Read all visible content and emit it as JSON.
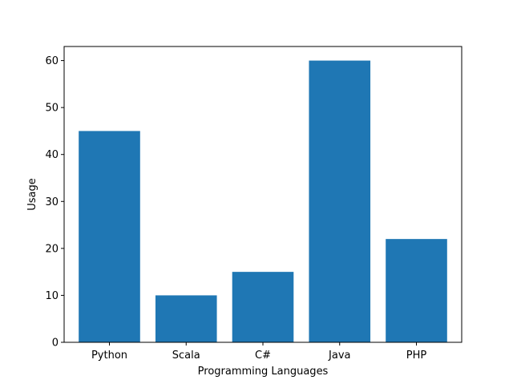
{
  "chart_data": {
    "type": "bar",
    "title": "",
    "xlabel": "Programming Languages",
    "ylabel": "Usage",
    "categories": [
      "Python",
      "Scala",
      "C#",
      "Java",
      "PHP"
    ],
    "values": [
      45,
      10,
      15,
      60,
      22
    ],
    "ylim": [
      0,
      63
    ],
    "yticks": [
      0,
      10,
      20,
      30,
      40,
      50,
      60
    ],
    "grid": false,
    "bar_color": "#1f77b4"
  }
}
